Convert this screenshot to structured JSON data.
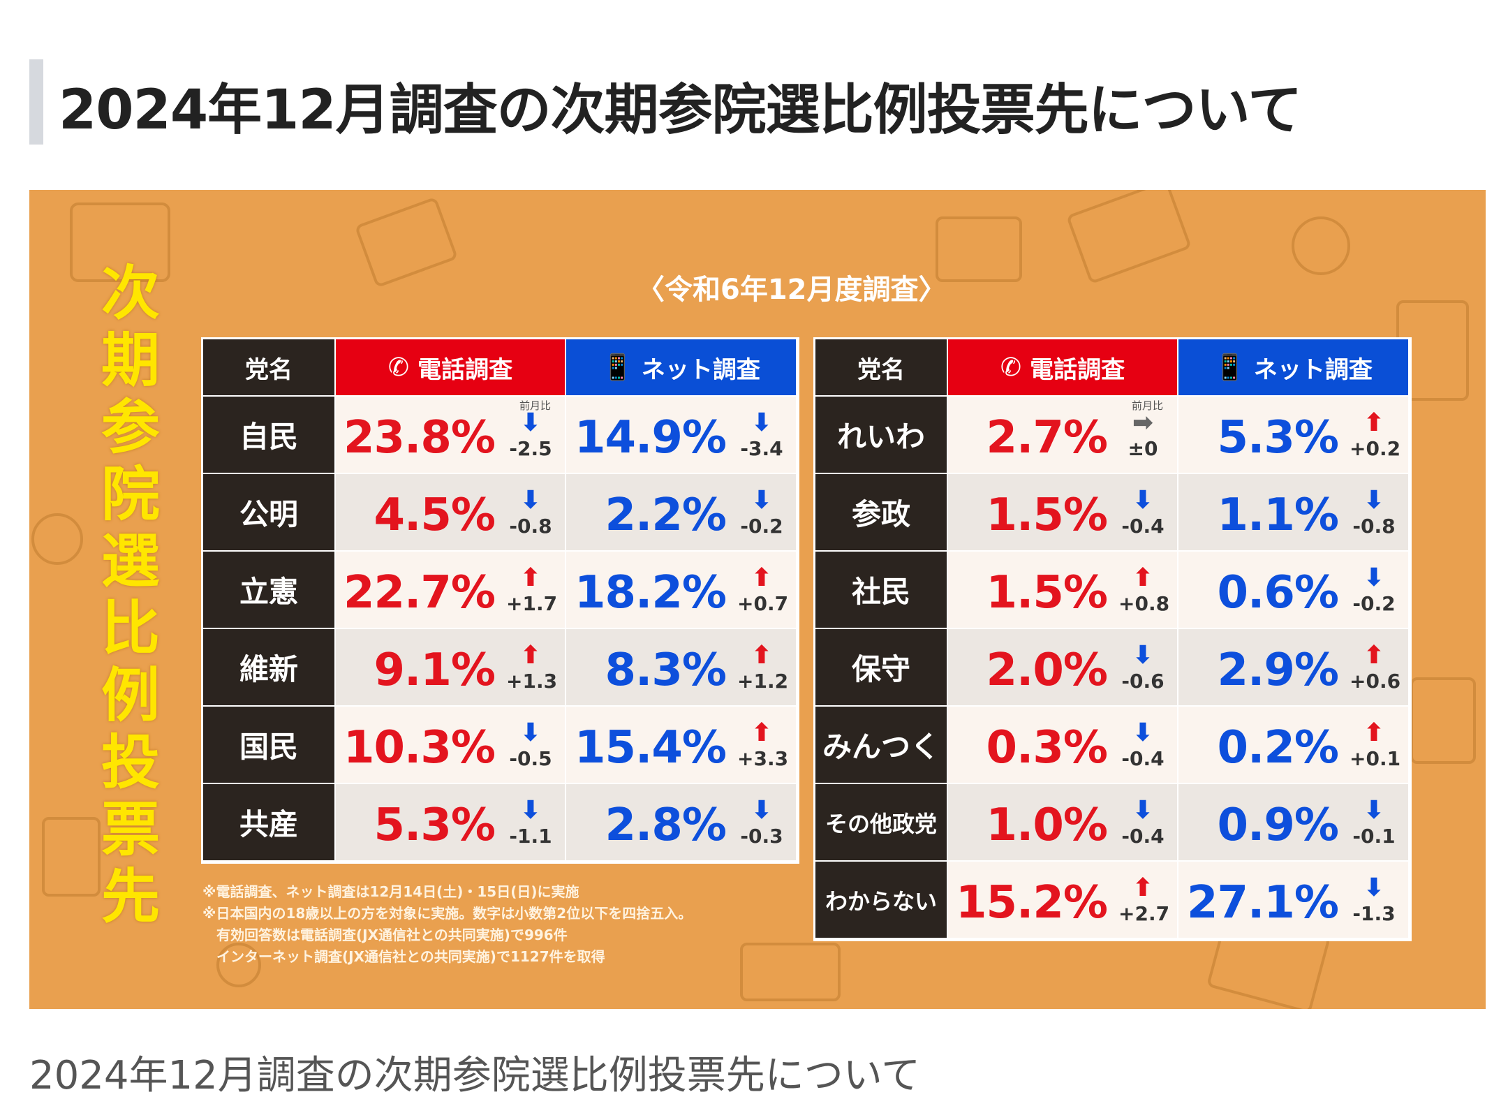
{
  "page_title": "2024年12月調査の次期参院選比例投票先について",
  "caption": "2024年12月調査の次期参院選比例投票先について",
  "infographic": {
    "vertical_title": "次期参院選比例投票先",
    "subtitle": "〈令和6年12月度調査〉",
    "headers": {
      "party": "党名",
      "phone": "電話調査",
      "net": "ネット調査",
      "prev_label": "前月比"
    },
    "icons": {
      "phone": "phone-icon",
      "net": "smartphone-icon"
    },
    "colors": {
      "phone": "#e60012",
      "net": "#0a4fd6",
      "background": "#e9a04f",
      "title": "#ffe600"
    },
    "left_table": [
      {
        "party": "自民",
        "phone": "23.8%",
        "phone_dir": "down",
        "phone_chg": "-2.5",
        "net": "14.9%",
        "net_dir": "down",
        "net_chg": "-3.4"
      },
      {
        "party": "公明",
        "phone": "4.5%",
        "phone_dir": "down",
        "phone_chg": "-0.8",
        "net": "2.2%",
        "net_dir": "down",
        "net_chg": "-0.2"
      },
      {
        "party": "立憲",
        "phone": "22.7%",
        "phone_dir": "up",
        "phone_chg": "+1.7",
        "net": "18.2%",
        "net_dir": "up",
        "net_chg": "+0.7"
      },
      {
        "party": "維新",
        "phone": "9.1%",
        "phone_dir": "up",
        "phone_chg": "+1.3",
        "net": "8.3%",
        "net_dir": "up",
        "net_chg": "+1.2"
      },
      {
        "party": "国民",
        "phone": "10.3%",
        "phone_dir": "down",
        "phone_chg": "-0.5",
        "net": "15.4%",
        "net_dir": "up",
        "net_chg": "+3.3"
      },
      {
        "party": "共産",
        "phone": "5.3%",
        "phone_dir": "down",
        "phone_chg": "-1.1",
        "net": "2.8%",
        "net_dir": "down",
        "net_chg": "-0.3"
      }
    ],
    "right_table": [
      {
        "party": "れいわ",
        "phone": "2.7%",
        "phone_dir": "flat",
        "phone_chg": "±0",
        "net": "5.3%",
        "net_dir": "up",
        "net_chg": "+0.2"
      },
      {
        "party": "参政",
        "phone": "1.5%",
        "phone_dir": "down",
        "phone_chg": "-0.4",
        "net": "1.1%",
        "net_dir": "down",
        "net_chg": "-0.8"
      },
      {
        "party": "社民",
        "phone": "1.5%",
        "phone_dir": "up",
        "phone_chg": "+0.8",
        "net": "0.6%",
        "net_dir": "down",
        "net_chg": "-0.2"
      },
      {
        "party": "保守",
        "phone": "2.0%",
        "phone_dir": "down",
        "phone_chg": "-0.6",
        "net": "2.9%",
        "net_dir": "up",
        "net_chg": "+0.6"
      },
      {
        "party": "みんつく",
        "phone": "0.3%",
        "phone_dir": "down",
        "phone_chg": "-0.4",
        "net": "0.2%",
        "net_dir": "up",
        "net_chg": "+0.1"
      },
      {
        "party": "その他政党",
        "phone": "1.0%",
        "phone_dir": "down",
        "phone_chg": "-0.4",
        "net": "0.9%",
        "net_dir": "down",
        "net_chg": "-0.1"
      },
      {
        "party": "わからない",
        "phone": "15.2%",
        "phone_dir": "up",
        "phone_chg": "+2.7",
        "net": "27.1%",
        "net_dir": "down",
        "net_chg": "-1.3"
      }
    ],
    "notes": [
      "※電話調査、ネット調査は12月14日(土)・15日(日)に実施",
      "※日本国内の18歳以上の方を対象に実施。数字は小数第2位以下を四捨五入。",
      "　有効回答数は電話調査(JX通信社との共同実施)で996件",
      "　インターネット調査(JX通信社との共同実施)で1127件を取得"
    ]
  }
}
